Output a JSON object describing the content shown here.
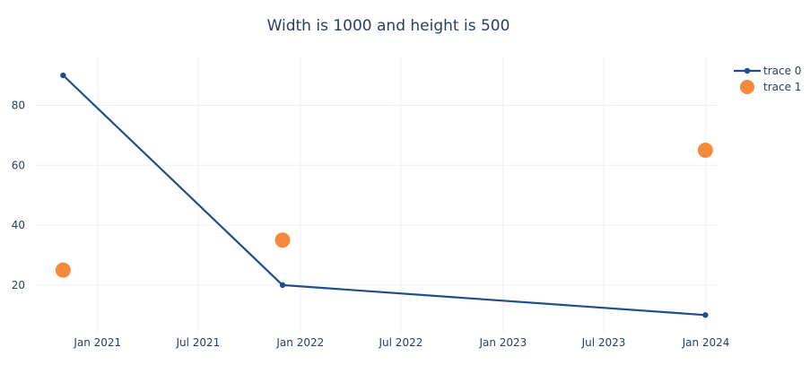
{
  "chart_data": {
    "type": "line",
    "title": "Width is 1000 and height is 500",
    "xlabel": "",
    "ylabel": "",
    "x_tick_labels": [
      "Jan 2021",
      "Jul 2021",
      "Jan 2022",
      "Jul 2022",
      "Jan 2023",
      "Jul 2023",
      "Jan 2024"
    ],
    "x_tick_dates": [
      "2021-01-01",
      "2021-07-01",
      "2022-01-01",
      "2022-07-01",
      "2023-01-01",
      "2023-07-01",
      "2024-01-01"
    ],
    "y_ticks": [
      20,
      40,
      60,
      80
    ],
    "xlim": [
      "2020-09-12",
      "2024-01-22"
    ],
    "ylim": [
      4.4,
      96
    ],
    "grid": true,
    "legend_position": "top-right",
    "series": [
      {
        "name": "trace 0",
        "mode": "lines+markers",
        "color": "#1f4e8c",
        "points": [
          {
            "x": "2020-10-31",
            "y": 90
          },
          {
            "x": "2021-11-30",
            "y": 20
          },
          {
            "x": "2023-12-31",
            "y": 10
          }
        ]
      },
      {
        "name": "trace 1",
        "mode": "markers",
        "color": "#f58a3d",
        "points": [
          {
            "x": "2020-10-31",
            "y": 25
          },
          {
            "x": "2021-11-30",
            "y": 35
          },
          {
            "x": "2023-12-31",
            "y": 65
          }
        ]
      }
    ]
  }
}
